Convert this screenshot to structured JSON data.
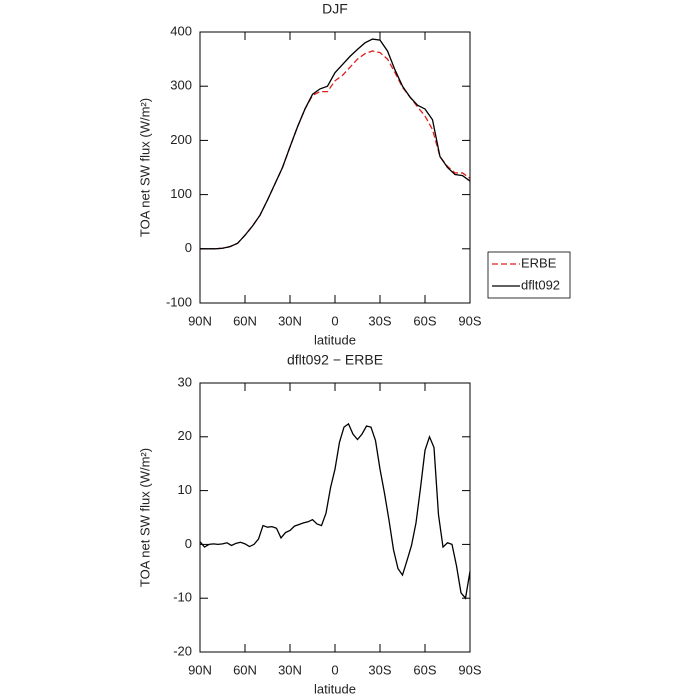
{
  "chart_data": [
    {
      "type": "line",
      "title": "DJF",
      "xlabel": "latitude",
      "ylabel": "TOA net SW flux (W/m²)",
      "x": [
        90,
        85,
        80,
        75,
        70,
        65,
        60,
        55,
        50,
        45,
        40,
        35,
        30,
        25,
        20,
        15,
        10,
        5,
        0,
        -5,
        -10,
        -15,
        -20,
        -25,
        -30,
        -35,
        -40,
        -45,
        -50,
        -55,
        -60,
        -65,
        -70,
        -75,
        -80,
        -85,
        -90
      ],
      "xlim": [
        90,
        -90
      ],
      "xticks": [
        {
          "value": 90,
          "label": "90N"
        },
        {
          "value": 60,
          "label": "60N"
        },
        {
          "value": 30,
          "label": "30N"
        },
        0,
        {
          "value": -30,
          "label": "30S"
        },
        {
          "value": -60,
          "label": "60S"
        },
        {
          "value": -90,
          "label": "90S"
        }
      ],
      "ylim": [
        -100,
        400
      ],
      "yticks": [
        -100,
        0,
        100,
        200,
        300,
        400
      ],
      "legend": "right",
      "series": [
        {
          "name": "ERBE",
          "color": "#e0201c",
          "dash": "dashed",
          "values": [
            0,
            0,
            0,
            1,
            4,
            10,
            25,
            42,
            62,
            90,
            120,
            150,
            188,
            225,
            258,
            283,
            290,
            290,
            310,
            320,
            335,
            350,
            360,
            365,
            362,
            350,
            325,
            298,
            280,
            262,
            245,
            220,
            170,
            152,
            140,
            140,
            130
          ]
        },
        {
          "name": "dflt092",
          "color": "#000000",
          "dash": "solid",
          "values": [
            0,
            0,
            0,
            1,
            4,
            10,
            25,
            42,
            62,
            90,
            120,
            150,
            188,
            225,
            258,
            285,
            295,
            300,
            325,
            340,
            355,
            368,
            380,
            387,
            385,
            365,
            330,
            300,
            280,
            265,
            258,
            238,
            170,
            150,
            137,
            135,
            125
          ]
        }
      ]
    },
    {
      "type": "line",
      "title": "dflt092 − ERBE",
      "xlabel": "latitude",
      "ylabel": "TOA net SW flux (W/m²)",
      "x": [
        90,
        87,
        84,
        81,
        78,
        75,
        72,
        69,
        66,
        63,
        60,
        57,
        54,
        51,
        48,
        45,
        42,
        39,
        36,
        33,
        30,
        27,
        24,
        21,
        18,
        15,
        12,
        9,
        6,
        3,
        0,
        -3,
        -6,
        -9,
        -12,
        -15,
        -18,
        -21,
        -24,
        -27,
        -30,
        -33,
        -36,
        -39,
        -42,
        -45,
        -48,
        -51,
        -54,
        -57,
        -60,
        -63,
        -66,
        -69,
        -72,
        -75,
        -78,
        -81,
        -84,
        -87,
        -90
      ],
      "xlim": [
        90,
        -90
      ],
      "xticks": [
        {
          "value": 90,
          "label": "90N"
        },
        {
          "value": 60,
          "label": "60N"
        },
        {
          "value": 30,
          "label": "30N"
        },
        0,
        {
          "value": -30,
          "label": "30S"
        },
        {
          "value": -60,
          "label": "60S"
        },
        {
          "value": -90,
          "label": "90S"
        }
      ],
      "ylim": [
        -20,
        30
      ],
      "yticks": [
        -20,
        -10,
        0,
        10,
        20,
        30
      ],
      "color": "#000000",
      "values": [
        0.5,
        -0.5,
        0,
        0.1,
        0,
        0.1,
        0.3,
        -0.2,
        0.2,
        0.4,
        0.1,
        -0.4,
        0,
        1,
        3.5,
        3.2,
        3.3,
        3,
        1.2,
        2.2,
        2.6,
        3.4,
        3.7,
        4,
        4.2,
        4.6,
        3.8,
        3.5,
        5.8,
        10.5,
        14,
        19,
        21.8,
        22.4,
        20.5,
        19.5,
        20.5,
        22,
        21.8,
        19.3,
        14,
        9.5,
        4.5,
        -1,
        -4.5,
        -5.7,
        -3,
        -0.2,
        4,
        10.5,
        17.5,
        20,
        18,
        5.5,
        -0.5,
        0.3,
        0,
        -4,
        -9,
        -10,
        -5
      ]
    }
  ]
}
